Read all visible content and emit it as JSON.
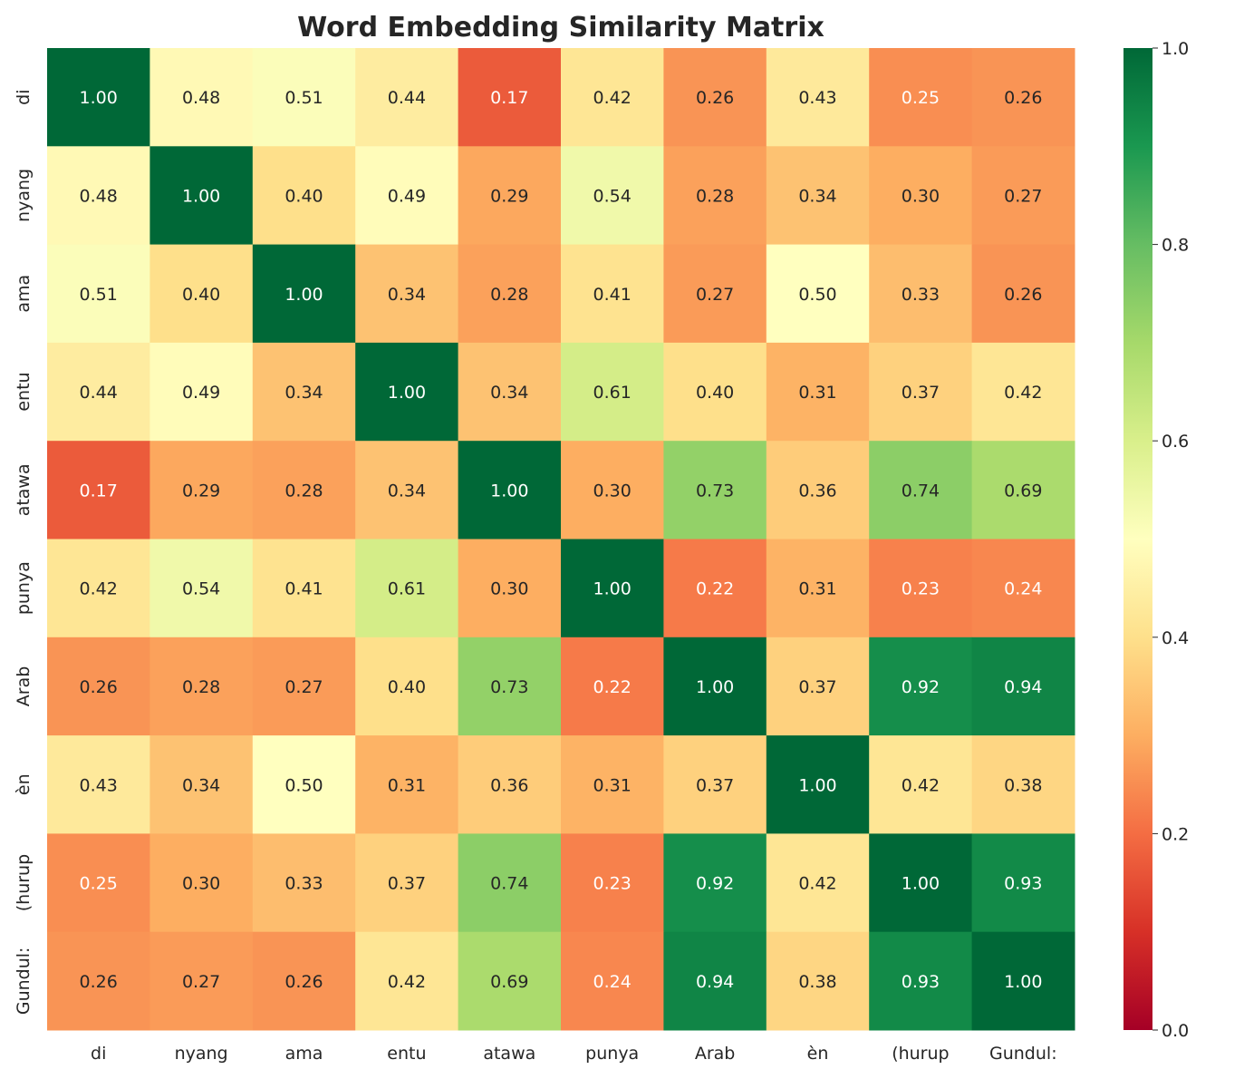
{
  "chart_data": {
    "type": "heatmap",
    "title": "Word Embedding Similarity Matrix",
    "x_labels": [
      "di",
      "nyang",
      "ama",
      "entu",
      "atawa",
      "punya",
      "Arab",
      "èn",
      "(hurup",
      "Gundul:"
    ],
    "y_labels": [
      "di",
      "nyang",
      "ama",
      "entu",
      "atawa",
      "punya",
      "Arab",
      "èn",
      "(hurup",
      "Gundul:"
    ],
    "values": [
      [
        1.0,
        0.48,
        0.51,
        0.44,
        0.17,
        0.42,
        0.26,
        0.43,
        0.25,
        0.26
      ],
      [
        0.48,
        1.0,
        0.4,
        0.49,
        0.29,
        0.54,
        0.28,
        0.34,
        0.3,
        0.27
      ],
      [
        0.51,
        0.4,
        1.0,
        0.34,
        0.28,
        0.41,
        0.27,
        0.5,
        0.33,
        0.26
      ],
      [
        0.44,
        0.49,
        0.34,
        1.0,
        0.34,
        0.61,
        0.4,
        0.31,
        0.37,
        0.42
      ],
      [
        0.17,
        0.29,
        0.28,
        0.34,
        1.0,
        0.3,
        0.73,
        0.36,
        0.74,
        0.69
      ],
      [
        0.42,
        0.54,
        0.41,
        0.61,
        0.3,
        1.0,
        0.22,
        0.31,
        0.23,
        0.24
      ],
      [
        0.26,
        0.28,
        0.27,
        0.4,
        0.73,
        0.22,
        1.0,
        0.37,
        0.92,
        0.94
      ],
      [
        0.43,
        0.34,
        0.5,
        0.31,
        0.36,
        0.31,
        0.37,
        1.0,
        0.42,
        0.38
      ],
      [
        0.25,
        0.3,
        0.33,
        0.37,
        0.74,
        0.23,
        0.92,
        0.42,
        1.0,
        0.93
      ],
      [
        0.26,
        0.27,
        0.26,
        0.42,
        0.69,
        0.24,
        0.94,
        0.38,
        0.93,
        1.0
      ]
    ],
    "colormap": "RdYlGn",
    "vmin": 0.0,
    "vmax": 1.0,
    "colorbar_ticks": [
      "0.0",
      "0.2",
      "0.4",
      "0.6",
      "0.8",
      "1.0"
    ],
    "annotation_format": "2 decimals",
    "grid": false,
    "colorbar_placement": "right"
  }
}
